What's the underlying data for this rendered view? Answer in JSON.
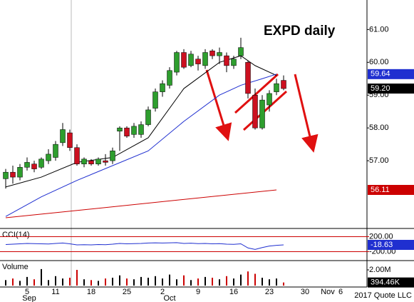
{
  "chart_data": [
    {
      "type": "candlestick",
      "title": "EXPD daily",
      "xlim": [
        -0.8,
        50.7
      ],
      "ylim": [
        55,
        61.9
      ],
      "yticks": [
        {
          "value": 57,
          "label": "57.00"
        },
        {
          "value": 58,
          "label": "58.00"
        },
        {
          "value": 59,
          "label": "59.00"
        },
        {
          "value": 60,
          "label": "60.00"
        },
        {
          "value": 61,
          "label": "61.00"
        }
      ],
      "up_color": "#2e9e2e",
      "down_color": "#cc1020",
      "x": [
        0,
        1,
        2,
        3,
        4,
        5,
        6,
        7,
        8,
        9,
        10,
        11,
        12,
        13,
        14,
        15,
        16,
        17,
        18,
        19,
        20,
        21,
        22,
        23,
        24,
        25,
        26,
        27,
        28,
        29,
        30,
        31,
        32,
        33,
        34,
        35,
        36,
        37,
        38,
        39
      ],
      "open": [
        56.45,
        56.65,
        56.5,
        56.8,
        56.9,
        56.8,
        57.0,
        57.1,
        57.55,
        57.85,
        57.4,
        56.9,
        57.0,
        56.9,
        57.0,
        57.0,
        57.9,
        58.0,
        57.8,
        57.8,
        58.1,
        58.6,
        59.1,
        59.3,
        59.7,
        60.3,
        59.9,
        60.1,
        59.9,
        60.35,
        60.2,
        60.2,
        59.9,
        60.2,
        60.0,
        59.0,
        58.0,
        58.7,
        59.1,
        59.45
      ],
      "high": [
        56.75,
        56.85,
        56.9,
        57.1,
        57.0,
        57.1,
        57.35,
        57.6,
        58.15,
        57.95,
        57.5,
        57.1,
        57.05,
        57.1,
        57.2,
        57.4,
        58.05,
        58.05,
        58.15,
        58.2,
        58.65,
        59.2,
        59.45,
        59.85,
        60.35,
        60.4,
        60.35,
        60.2,
        60.4,
        60.4,
        60.45,
        60.3,
        60.2,
        60.75,
        60.05,
        59.2,
        59.0,
        59.15,
        59.5,
        59.6
      ],
      "low": [
        56.15,
        56.3,
        56.4,
        56.7,
        56.65,
        56.75,
        56.9,
        57.0,
        57.45,
        57.3,
        56.85,
        56.8,
        56.85,
        56.85,
        56.85,
        56.9,
        57.3,
        57.7,
        57.7,
        57.7,
        58.05,
        58.5,
        58.95,
        59.2,
        59.6,
        59.8,
        59.85,
        59.75,
        59.8,
        60.1,
        59.95,
        59.7,
        59.8,
        60.1,
        58.9,
        57.95,
        57.95,
        58.5,
        59.0,
        59.15
      ],
      "close": [
        56.65,
        56.5,
        56.8,
        56.95,
        56.75,
        57.05,
        57.2,
        57.5,
        57.95,
        57.4,
        56.9,
        57.05,
        56.9,
        57.05,
        56.95,
        57.3,
        58.0,
        57.75,
        58.05,
        58.1,
        58.55,
        59.1,
        59.35,
        59.75,
        60.3,
        59.85,
        60.25,
        59.95,
        60.3,
        60.2,
        60.3,
        59.9,
        60.1,
        60.45,
        59.05,
        58.0,
        58.85,
        59.05,
        59.35,
        59.2
      ],
      "last_label": "59.20",
      "series": [
        {
          "color": "#000000",
          "x": [
            0,
            5,
            10,
            15,
            20,
            25,
            30,
            33,
            35,
            38
          ],
          "values": [
            56.2,
            56.5,
            56.95,
            57.1,
            57.7,
            59.2,
            60.0,
            60.2,
            59.9,
            59.6
          ]
        },
        {
          "color": "#1f2fd0",
          "tagged": true,
          "x": [
            0,
            5,
            10,
            15,
            20,
            25,
            30,
            33,
            36,
            38
          ],
          "values": [
            55.3,
            55.9,
            56.4,
            56.85,
            57.3,
            58.2,
            59.0,
            59.3,
            59.5,
            59.64
          ]
        },
        {
          "color": "#cc0000",
          "tagged": true,
          "x": [
            0,
            38
          ],
          "values": [
            55.26,
            56.11
          ]
        }
      ]
    },
    {
      "type": "line",
      "title": "CCI(14)",
      "xlim": [
        -0.8,
        50.7
      ],
      "ylim": [
        -380,
        380
      ],
      "yticks": [
        {
          "value": 200,
          "label": "200.00"
        },
        {
          "value": -200,
          "label": "-200.00"
        }
      ],
      "grid_color": "#cc0000",
      "series": [
        {
          "color": "#1f2fd0",
          "tagged": true,
          "x": [
            0,
            1,
            2,
            3,
            4,
            5,
            6,
            7,
            8,
            9,
            10,
            11,
            12,
            13,
            14,
            15,
            16,
            17,
            18,
            19,
            20,
            21,
            22,
            23,
            24,
            25,
            26,
            27,
            28,
            29,
            30,
            31,
            32,
            33,
            34,
            35,
            36,
            37,
            38,
            39
          ],
          "values": [
            -10,
            0,
            10,
            20,
            15,
            10,
            5,
            20,
            30,
            10,
            -20,
            -15,
            -20,
            -10,
            -15,
            0,
            20,
            10,
            15,
            20,
            30,
            35,
            30,
            35,
            40,
            20,
            25,
            15,
            20,
            10,
            15,
            0,
            -5,
            10,
            -100,
            -140,
            -90,
            -50,
            -30,
            -18.63
          ]
        }
      ]
    },
    {
      "type": "bar",
      "title": "Volume",
      "xlim": [
        -0.8,
        50.7
      ],
      "ylim": [
        0,
        3000000
      ],
      "yticks": [
        {
          "value": 2000000,
          "label": "2.00M"
        }
      ],
      "x": [
        0,
        1,
        2,
        3,
        4,
        5,
        6,
        7,
        8,
        9,
        10,
        11,
        12,
        13,
        14,
        15,
        16,
        17,
        18,
        19,
        20,
        21,
        22,
        23,
        24,
        25,
        26,
        27,
        28,
        29,
        30,
        31,
        32,
        33,
        34,
        35,
        36,
        37,
        38,
        39
      ],
      "values": [
        700000,
        900000,
        600000,
        1100000,
        800000,
        2100000,
        700000,
        1200000,
        900000,
        1000000,
        2000000,
        800000,
        700000,
        600000,
        900000,
        1000000,
        1300000,
        900000,
        800000,
        1100000,
        1000000,
        1200000,
        900000,
        1400000,
        800000,
        1300000,
        700000,
        900000,
        1100000,
        1000000,
        800000,
        1200000,
        900000,
        1400000,
        1800000,
        1500000,
        1000000,
        800000,
        900000,
        394460
      ],
      "colors": [
        "#000",
        "#c00",
        "#000",
        "#000",
        "#c00",
        "#000",
        "#000",
        "#000",
        "#000",
        "#c00",
        "#c00",
        "#000",
        "#c00",
        "#000",
        "#c00",
        "#000",
        "#000",
        "#c00",
        "#000",
        "#000",
        "#000",
        "#000",
        "#000",
        "#000",
        "#000",
        "#c00",
        "#000",
        "#c00",
        "#000",
        "#c00",
        "#000",
        "#c00",
        "#000",
        "#000",
        "#c00",
        "#c00",
        "#000",
        "#000",
        "#000",
        "#c00"
      ],
      "last_label": "394.46K",
      "xticks": [
        {
          "value": 3,
          "label": "5"
        },
        {
          "value": 7,
          "label": "11"
        },
        {
          "value": 12,
          "label": "18"
        },
        {
          "value": 17,
          "label": "25"
        },
        {
          "value": 22,
          "label": "2"
        },
        {
          "value": 27,
          "label": "9"
        },
        {
          "value": 32,
          "label": "16"
        },
        {
          "value": 37,
          "label": "23"
        },
        {
          "value": 42,
          "label": "30"
        },
        {
          "value": 45.2,
          "label": "Nov"
        },
        {
          "value": 47,
          "label": "6"
        }
      ],
      "month_ticks": [
        {
          "value": 3.3,
          "label": "Sep"
        },
        {
          "value": 23,
          "label": "Oct"
        }
      ],
      "footer": "2017 Quote LLC"
    }
  ]
}
